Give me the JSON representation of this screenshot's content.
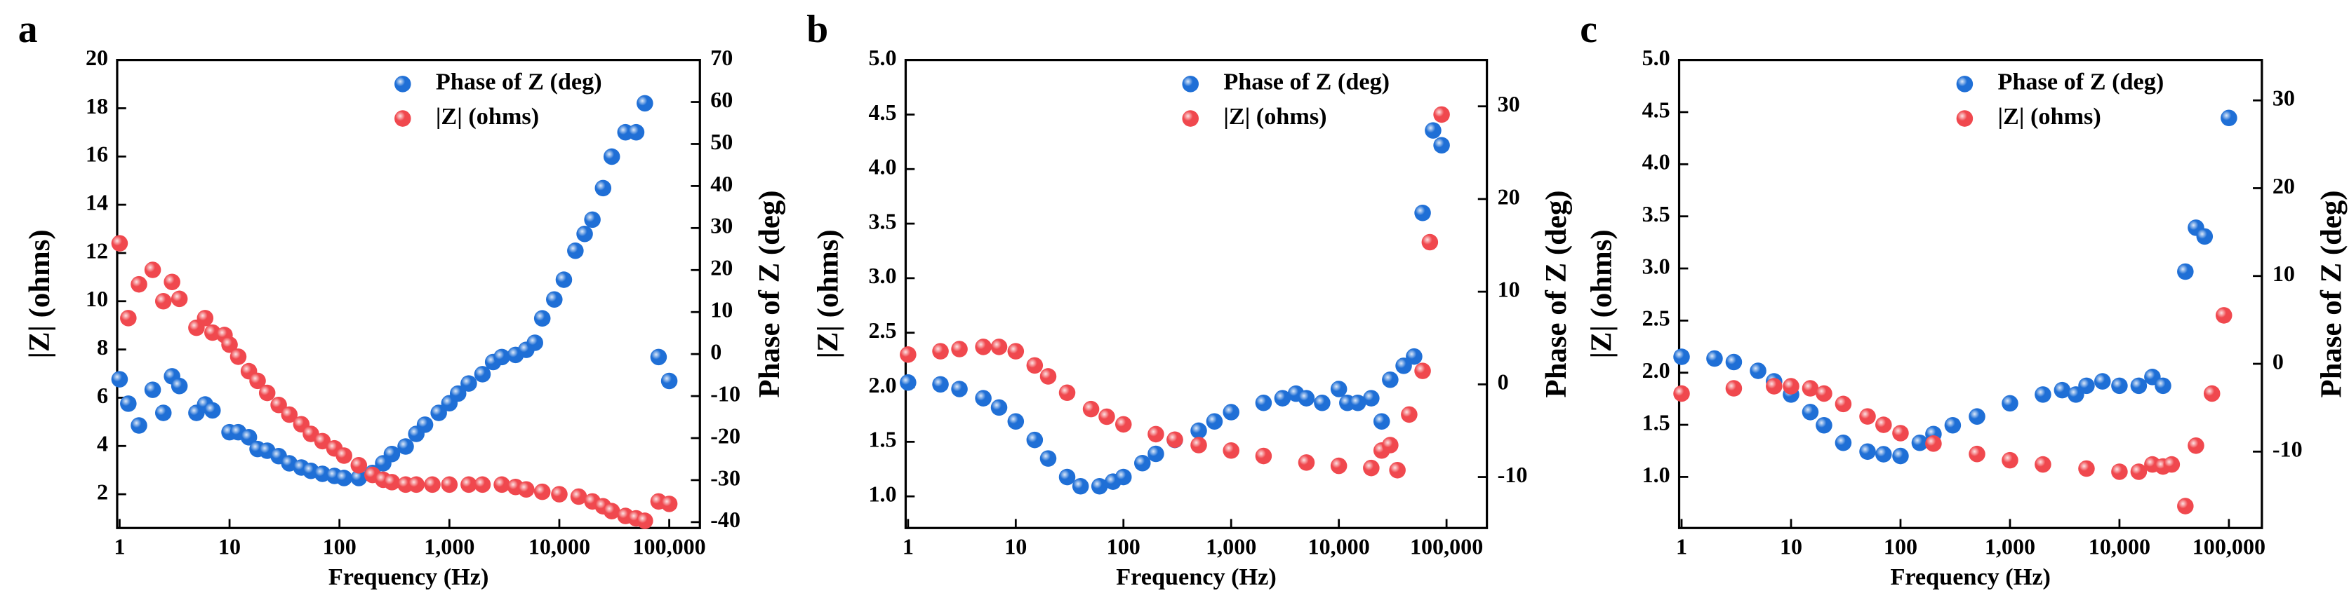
{
  "chart_data": [
    {
      "type": "scatter",
      "label": "a",
      "xlabel": "Frequency (Hz)",
      "ylabel": "|Z| (ohms)",
      "y2label": "Phase of Z (deg)",
      "log_x": true,
      "legend": "upper right",
      "xlim": [
        0.95,
        190000
      ],
      "xticks": [
        1,
        10,
        100,
        {
          "value": 1000,
          "label": "1,000"
        },
        {
          "value": 10000,
          "label": "10,000"
        },
        {
          "value": 100000,
          "label": "100,000"
        }
      ],
      "ylim": [
        0.6,
        20
      ],
      "yticks": [
        2,
        4,
        6,
        8,
        10,
        12,
        14,
        16,
        18,
        20
      ],
      "y2lim": [
        -41.4,
        70
      ],
      "y2ticks": [
        -40,
        -30,
        -20,
        -10,
        0,
        10,
        20,
        30,
        40,
        50,
        60,
        70
      ],
      "series": [
        {
          "name": "Phase of Z (deg)",
          "color": "#1f6fd6",
          "axis": "y2",
          "x": [
            1,
            1.2,
            1.5,
            2,
            2.5,
            3,
            3.5,
            5,
            6,
            7,
            10,
            12,
            15,
            18,
            22,
            28,
            35,
            45,
            55,
            70,
            90,
            110,
            150,
            200,
            250,
            300,
            400,
            500,
            600,
            800,
            1000,
            1200,
            1500,
            2000,
            2500,
            3000,
            4000,
            5000,
            6000,
            7000,
            9000,
            11000,
            14000,
            17000,
            20000,
            25000,
            30000,
            40000,
            50000,
            60000,
            80000,
            100000
          ],
          "values": [
            -6,
            -11.8,
            -17,
            -8.5,
            -14,
            -5.3,
            -7.6,
            -14,
            -12,
            -13.4,
            -18.6,
            -18.6,
            -19.8,
            -22.6,
            -23,
            -24.3,
            -26,
            -27,
            -27.8,
            -28.5,
            -29,
            -29.5,
            -29.5,
            -28.3,
            -26,
            -23.8,
            -22,
            -19,
            -16.8,
            -14,
            -11.7,
            -9.4,
            -7,
            -4.8,
            -1.9,
            -0.7,
            -0.2,
            1,
            2.7,
            8.5,
            13,
            17.7,
            24.6,
            28.6,
            32,
            39.5,
            47,
            52.8,
            52.8,
            59.7,
            -0.7,
            -6.4
          ]
        },
        {
          "name": "|Z| (ohms)",
          "color": "#f0484e",
          "x": [
            1,
            1.2,
            1.5,
            2,
            2.5,
            3,
            3.5,
            5,
            6,
            7,
            9,
            10,
            12,
            15,
            18,
            22,
            28,
            35,
            45,
            55,
            70,
            90,
            110,
            150,
            200,
            250,
            300,
            400,
            500,
            700,
            1000,
            1500,
            2000,
            3000,
            4000,
            5000,
            7000,
            10000,
            15000,
            20000,
            25000,
            30000,
            40000,
            50000,
            60000,
            80000,
            100000
          ],
          "values": [
            12.4,
            9.3,
            10.7,
            11.3,
            10,
            10.8,
            10.1,
            8.9,
            9.3,
            8.7,
            8.6,
            8.2,
            7.7,
            7.1,
            6.7,
            6.2,
            5.7,
            5.3,
            4.9,
            4.5,
            4.2,
            3.9,
            3.6,
            3.2,
            2.8,
            2.6,
            2.5,
            2.4,
            2.4,
            2.4,
            2.4,
            2.4,
            2.4,
            2.4,
            2.3,
            2.2,
            2.1,
            2.0,
            1.9,
            1.7,
            1.5,
            1.3,
            1.1,
            1.0,
            0.9,
            1.7,
            1.6
          ]
        }
      ]
    },
    {
      "type": "scatter",
      "label": "b",
      "xlabel": "Frequency (Hz)",
      "ylabel": "|Z| (ohms)",
      "y2label": "Phase of Z (deg)",
      "log_x": true,
      "legend": "upper right",
      "xlim": [
        0.95,
        237000
      ],
      "xticks": [
        1,
        10,
        100,
        {
          "value": 1000,
          "label": "1,000"
        },
        {
          "value": 10000,
          "label": "10,000"
        },
        {
          "value": 100000,
          "label": "100,000"
        }
      ],
      "ylim": [
        0.71,
        5
      ],
      "yticks": [
        {
          "value": 1,
          "label": "1.0"
        },
        1.5,
        {
          "value": 2,
          "label": "2.0"
        },
        2.5,
        {
          "value": 3,
          "label": "3.0"
        },
        3.5,
        {
          "value": 4,
          "label": "4.0"
        },
        4.5,
        {
          "value": 5,
          "label": "5.0"
        }
      ],
      "y2lim": [
        -15.5,
        35
      ],
      "y2ticks": [
        -10,
        0,
        10,
        20,
        30
      ],
      "series": [
        {
          "name": "Phase of Z (deg)",
          "color": "#1f6fd6",
          "axis": "y2",
          "x": [
            1,
            2,
            3,
            5,
            7,
            10,
            15,
            20,
            30,
            40,
            60,
            80,
            100,
            150,
            200,
            300,
            500,
            700,
            1000,
            2000,
            3000,
            4000,
            5000,
            7000,
            10000,
            12000,
            15000,
            20000,
            25000,
            30000,
            40000,
            50000,
            60000,
            75000,
            90000
          ],
          "values": [
            0.2,
            0,
            -0.5,
            -1.5,
            -2.5,
            -4,
            -6,
            -8,
            -10,
            -11,
            -11,
            -10.5,
            -10,
            -8.5,
            -7.5,
            -6,
            -5,
            -4,
            -3,
            -2,
            -1.5,
            -1,
            -1.5,
            -2,
            -0.5,
            -2,
            -2,
            -1.5,
            -4,
            0.5,
            2,
            3,
            18.5,
            27.4,
            25.8
          ]
        },
        {
          "name": "|Z| (ohms)",
          "color": "#f0484e",
          "x": [
            1,
            2,
            3,
            5,
            7,
            10,
            15,
            20,
            30,
            50,
            70,
            100,
            200,
            300,
            500,
            1000,
            2000,
            5000,
            10000,
            20000,
            25000,
            30000,
            35000,
            45000,
            60000,
            70000,
            90000
          ],
          "values": [
            2.3,
            2.33,
            2.35,
            2.37,
            2.37,
            2.33,
            2.2,
            2.1,
            1.95,
            1.8,
            1.73,
            1.66,
            1.57,
            1.52,
            1.47,
            1.42,
            1.37,
            1.31,
            1.28,
            1.26,
            1.42,
            1.47,
            1.24,
            1.75,
            2.15,
            3.33,
            4.5
          ]
        }
      ]
    },
    {
      "type": "scatter",
      "label": "c",
      "xlabel": "Frequency (Hz)",
      "ylabel": "|Z| (ohms)",
      "y2label": "Phase of Z (deg)",
      "log_x": true,
      "legend": "upper right",
      "xlim": [
        0.95,
        200000
      ],
      "xticks": [
        1,
        10,
        100,
        {
          "value": 1000,
          "label": "1,000"
        },
        {
          "value": 10000,
          "label": "10,000"
        },
        {
          "value": 100000,
          "label": "100,000"
        }
      ],
      "ylim": [
        0.51,
        5
      ],
      "yticks": [
        {
          "value": 1,
          "label": "1.0"
        },
        1.5,
        {
          "value": 2,
          "label": "2.0"
        },
        2.5,
        {
          "value": 3,
          "label": "3.0"
        },
        3.5,
        {
          "value": 4,
          "label": "4.0"
        },
        4.5,
        {
          "value": 5,
          "label": "5.0"
        }
      ],
      "y2lim": [
        -18.7,
        34.6
      ],
      "y2ticks": [
        -10,
        0,
        10,
        20,
        30
      ],
      "series": [
        {
          "name": "Phase of Z (deg)",
          "color": "#1f6fd6",
          "axis": "y2",
          "x": [
            1,
            2,
            3,
            5,
            7,
            10,
            15,
            20,
            30,
            50,
            70,
            100,
            150,
            200,
            300,
            500,
            1000,
            2000,
            3000,
            4000,
            5000,
            7000,
            10000,
            15000,
            20000,
            25000,
            40000,
            50000,
            60000,
            100000
          ],
          "values": [
            0.8,
            0.6,
            0.2,
            -0.8,
            -2,
            -3.5,
            -5.5,
            -7,
            -9,
            -10,
            -10.3,
            -10.5,
            -9,
            -8,
            -7,
            -6,
            -4.5,
            -3.5,
            -3,
            -3.5,
            -2.5,
            -2,
            -2.5,
            -2.5,
            -1.5,
            -2.5,
            10.5,
            15.5,
            14.5,
            28
          ]
        },
        {
          "name": "|Z| (ohms)",
          "color": "#f0484e",
          "x": [
            1,
            3,
            7,
            10,
            15,
            20,
            30,
            50,
            70,
            100,
            200,
            500,
            1000,
            2000,
            5000,
            10000,
            15000,
            20000,
            25000,
            30000,
            40000,
            50000,
            70000,
            90000
          ],
          "values": [
            1.8,
            1.85,
            1.87,
            1.87,
            1.85,
            1.8,
            1.7,
            1.58,
            1.5,
            1.42,
            1.32,
            1.22,
            1.16,
            1.12,
            1.08,
            1.05,
            1.05,
            1.12,
            1.1,
            1.12,
            0.72,
            1.3,
            1.8,
            2.55
          ]
        }
      ]
    }
  ]
}
